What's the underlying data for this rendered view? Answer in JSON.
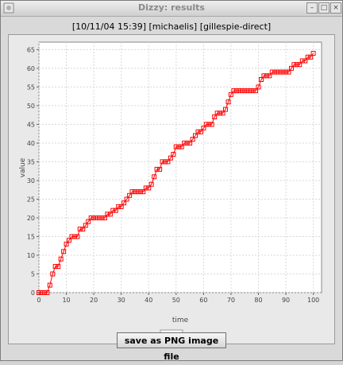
{
  "window": {
    "title": "Dizzy: results",
    "buttons": [
      "minimize",
      "maximize",
      "close"
    ]
  },
  "header": {
    "label": "[10/11/04 15:39] [michaelis] [gillespie-direct]"
  },
  "legend": {
    "series_label": "P",
    "color": "#ff0000"
  },
  "save_button": {
    "label": "save as PNG image file"
  },
  "chart_data": {
    "type": "line",
    "xlabel": "time",
    "ylabel": "value",
    "xlim": [
      0,
      103
    ],
    "ylim": [
      0,
      67
    ],
    "x_ticks": [
      0,
      10,
      20,
      30,
      40,
      50,
      60,
      70,
      80,
      90,
      100
    ],
    "y_ticks": [
      0,
      5,
      10,
      15,
      20,
      25,
      30,
      35,
      40,
      45,
      50,
      55,
      60,
      65
    ],
    "grid": true,
    "legend_position": "bottom",
    "series": [
      {
        "name": "P",
        "color": "#ff0000",
        "marker": "square",
        "x": [
          0,
          1,
          2,
          3,
          4,
          5,
          6,
          7,
          8,
          9,
          10,
          11,
          12,
          13,
          14,
          15,
          16,
          17,
          18,
          19,
          20,
          21,
          22,
          23,
          24,
          25,
          26,
          27,
          28,
          29,
          30,
          31,
          32,
          33,
          34,
          35,
          36,
          37,
          38,
          39,
          40,
          41,
          42,
          43,
          44,
          45,
          46,
          47,
          48,
          49,
          50,
          51,
          52,
          53,
          54,
          55,
          56,
          57,
          58,
          59,
          60,
          61,
          62,
          63,
          64,
          65,
          66,
          67,
          68,
          69,
          70,
          71,
          72,
          73,
          74,
          75,
          76,
          77,
          78,
          79,
          80,
          81,
          82,
          83,
          84,
          85,
          86,
          87,
          88,
          89,
          90,
          91,
          92,
          93,
          94,
          95,
          96,
          97,
          98,
          99,
          100
        ],
        "y": [
          0,
          0,
          0,
          0,
          2,
          5,
          7,
          7,
          9,
          11,
          13,
          14,
          15,
          15,
          15,
          17,
          17,
          18,
          19,
          20,
          20,
          20,
          20,
          20,
          20,
          21,
          21,
          22,
          22,
          23,
          23,
          24,
          25,
          26,
          27,
          27,
          27,
          27,
          27,
          28,
          28,
          29,
          31,
          33,
          33,
          35,
          35,
          35,
          36,
          37,
          39,
          39,
          39,
          40,
          40,
          40,
          41,
          42,
          43,
          43,
          44,
          45,
          45,
          45,
          47,
          48,
          48,
          48,
          49,
          51,
          53,
          54,
          54,
          54,
          54,
          54,
          54,
          54,
          54,
          54,
          55,
          57,
          58,
          58,
          58,
          59,
          59,
          59,
          59,
          59,
          59,
          59,
          60,
          61,
          61,
          61,
          62,
          62,
          63,
          63,
          64
        ]
      }
    ]
  }
}
